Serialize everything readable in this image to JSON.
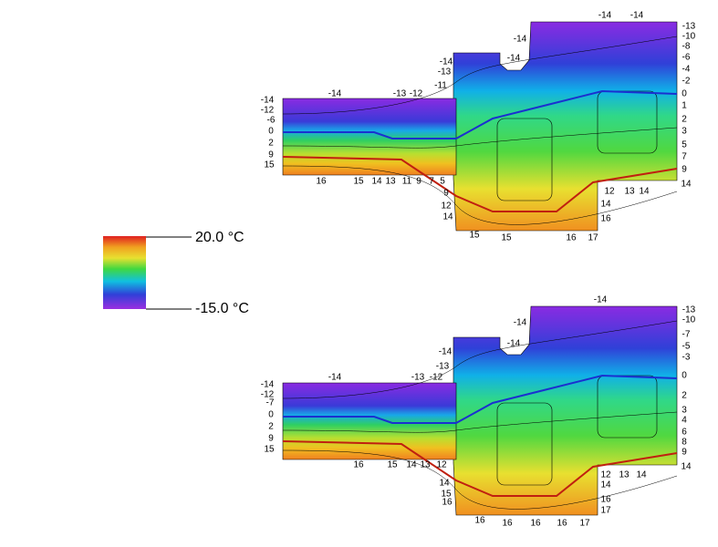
{
  "legend": {
    "max_label": "20.0 °C",
    "min_label": "-15.0 °C"
  },
  "panels": [
    {
      "labels": [
        "-14",
        "-12",
        "-6",
        "0",
        "2",
        "9",
        "15",
        "-14",
        "-13",
        "-12",
        "-11",
        "-13",
        "-14",
        "-14",
        "-14",
        "-14",
        "-14",
        "-13",
        "-10",
        "-8",
        "-6",
        "-4",
        "-2",
        "0",
        "1",
        "2",
        "3",
        "5",
        "7",
        "9",
        "14",
        "16",
        "15",
        "14",
        "13",
        "11",
        "9",
        "7",
        "5",
        "9",
        "12",
        "14",
        "15",
        "15",
        "16",
        "17",
        "12",
        "13",
        "14",
        "14",
        "16"
      ]
    },
    {
      "labels": [
        "-14",
        "-12",
        "-7",
        "0",
        "2",
        "9",
        "15",
        "-14",
        "-13",
        "-12",
        "-14",
        "-13",
        "-14",
        "-14",
        "-14",
        "-13",
        "-10",
        "-7",
        "-5",
        "-3",
        "0",
        "2",
        "3",
        "4",
        "6",
        "8",
        "9",
        "14",
        "16",
        "15",
        "14",
        "13",
        "12",
        "14",
        "15",
        "16",
        "16",
        "16",
        "16",
        "16",
        "17",
        "12",
        "13",
        "14",
        "14",
        "16",
        "17"
      ]
    }
  ]
}
